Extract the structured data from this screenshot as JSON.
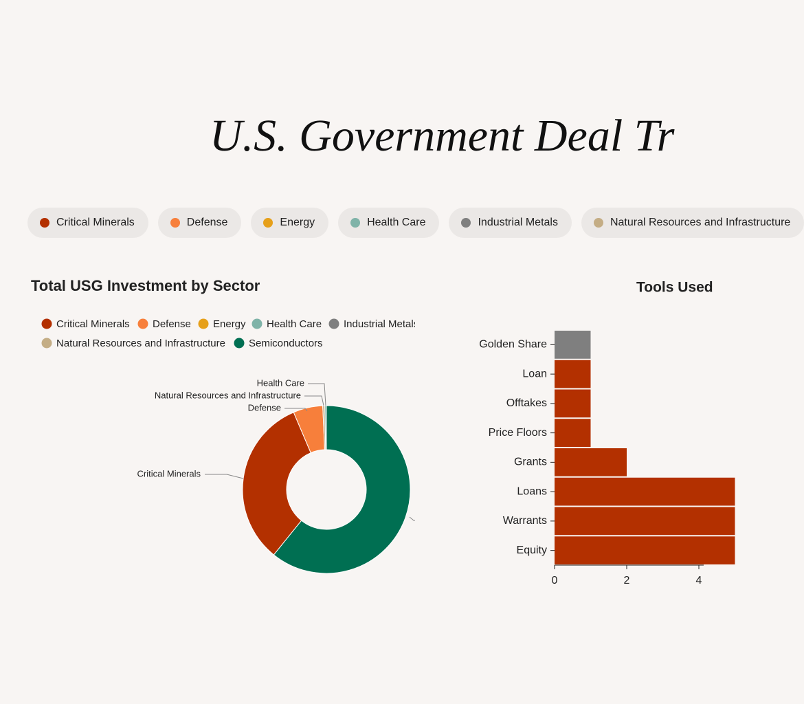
{
  "header": {
    "title": "U.S. Government Deal Tr"
  },
  "chart_data": [
    {
      "type": "pie",
      "title": "Total USG Investment by Sector",
      "sort": "descending",
      "categories": [
        "Critical Minerals",
        "Defense",
        "Energy",
        "Health Care",
        "Industrial Metals",
        "Natural Resources and Infrastructure",
        "Semiconductors"
      ],
      "values": [
        32.8,
        5.7,
        0,
        0.3,
        0,
        0.4,
        60.8
      ],
      "colors": [
        "#b33000",
        "#f77f3b",
        "#e6a01a",
        "#7fb3a8",
        "#7f7f7f",
        "#c4ad85",
        "#006f52"
      ]
    },
    {
      "type": "bar",
      "orientation": "horizontal",
      "title": "Tools Used",
      "categories": [
        "Golden Share",
        "Loan",
        "Offtakes",
        "Price Floors",
        "Grants",
        "Loans",
        "Warrants",
        "Equity"
      ],
      "values": [
        1,
        1,
        1,
        1,
        2,
        5,
        5,
        5
      ],
      "colors": [
        "#7f7f7f",
        "#b33000",
        "#b33000",
        "#b33000",
        "#b33000",
        "#b33000",
        "#b33000",
        "#b33000"
      ],
      "xlim": [
        0,
        4
      ],
      "xticks": [
        0,
        2,
        4
      ]
    }
  ]
}
